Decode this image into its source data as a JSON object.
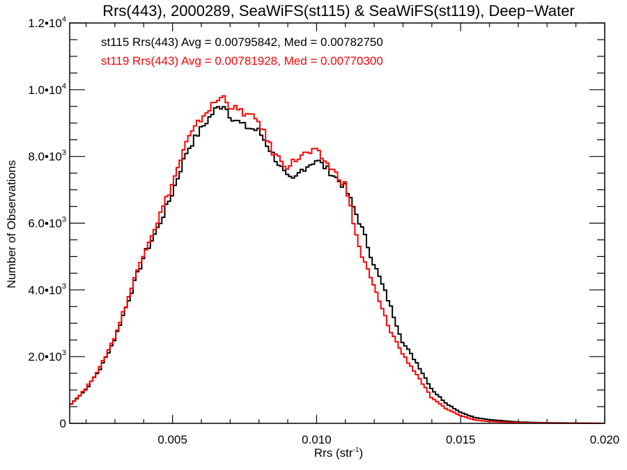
{
  "chart_data": {
    "type": "line",
    "title": "Rrs(443), 2000289, SeaWiFS(st115) & SeaWiFS(st119), Deep−Water",
    "xlabel": "Rrs (str",
    "xlabel_sup": "-1",
    "xlabel_close": ")",
    "ylabel": "Number of Observations",
    "xlim": [
      0.00143,
      0.02
    ],
    "ylim": [
      0,
      12000
    ],
    "grid": false,
    "x_ticks": [
      {
        "value": 0.005,
        "label": "0.005"
      },
      {
        "value": 0.01,
        "label": "0.010"
      },
      {
        "value": 0.015,
        "label": "0.015"
      },
      {
        "value": 0.02,
        "label": "0.020"
      }
    ],
    "x_minor_step": 0.001,
    "y_ticks": [
      {
        "value": 0,
        "mant": "0",
        "exp": ""
      },
      {
        "value": 2000,
        "mant": "2.0•10",
        "exp": "3"
      },
      {
        "value": 4000,
        "mant": "4.0•10",
        "exp": "3"
      },
      {
        "value": 6000,
        "mant": "6.0•10",
        "exp": "3"
      },
      {
        "value": 8000,
        "mant": "8.0•10",
        "exp": "3"
      },
      {
        "value": 10000,
        "mant": "1.0•10",
        "exp": "4"
      },
      {
        "value": 12000,
        "mant": "1.2•10",
        "exp": "4"
      }
    ],
    "y_minor_step": 500,
    "bin_width": 0.0001,
    "legend": [
      {
        "text": "st115 Rrs(443) Avg = 0.00795842, Med = 0.00782750",
        "color": "#000000"
      },
      {
        "text": "st119 Rrs(443) Avg = 0.00781928, Med = 0.00770300",
        "color": "#ff0000"
      }
    ],
    "legend_placement": "top-left",
    "series": [
      {
        "name": "st115",
        "color": "#000000",
        "x": [
          0.00143,
          0.002,
          0.0025,
          0.003,
          0.0035,
          0.004,
          0.0045,
          0.005,
          0.0055,
          0.006,
          0.0065,
          0.0068,
          0.007,
          0.0075,
          0.008,
          0.0085,
          0.009,
          0.0092,
          0.0095,
          0.01,
          0.0105,
          0.011,
          0.0115,
          0.012,
          0.0125,
          0.013,
          0.0135,
          0.014,
          0.0145,
          0.015,
          0.0155,
          0.016,
          0.017,
          0.018,
          0.02
        ],
        "y": [
          540,
          1020,
          1650,
          2540,
          3770,
          5000,
          5870,
          6920,
          8170,
          8830,
          9420,
          9560,
          9210,
          8900,
          8760,
          8040,
          7330,
          7270,
          7620,
          7900,
          7520,
          7060,
          6020,
          4770,
          3670,
          2420,
          1790,
          1020,
          600,
          330,
          170,
          110,
          40,
          15,
          0
        ]
      },
      {
        "name": "st119",
        "color": "#ff0000",
        "x": [
          0.00143,
          0.002,
          0.0025,
          0.003,
          0.0035,
          0.004,
          0.0045,
          0.005,
          0.0055,
          0.006,
          0.0065,
          0.0068,
          0.007,
          0.0075,
          0.008,
          0.0085,
          0.009,
          0.0095,
          0.01,
          0.0105,
          0.011,
          0.0115,
          0.012,
          0.0125,
          0.013,
          0.0135,
          0.014,
          0.0145,
          0.015,
          0.0155,
          0.016,
          0.017,
          0.018,
          0.02
        ],
        "y": [
          540,
          1050,
          1700,
          2600,
          3850,
          5150,
          6100,
          7200,
          8450,
          9150,
          9650,
          9800,
          9500,
          9300,
          9050,
          8100,
          7700,
          8050,
          8150,
          7650,
          7150,
          5190,
          4080,
          2900,
          2060,
          1440,
          750,
          440,
          230,
          100,
          55,
          20,
          8,
          0
        ]
      }
    ]
  }
}
